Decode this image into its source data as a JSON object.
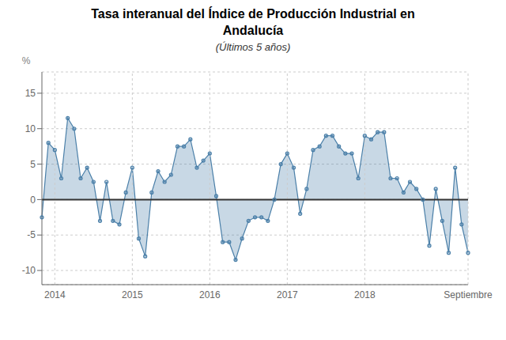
{
  "chart_data": {
    "type": "area",
    "title": "Tasa interanual del Índice de Producción Industrial en\nAndalucía",
    "subtitle": "(Últimos 5 años)",
    "y_label": "%",
    "categories": [
      null,
      null,
      "2014",
      null,
      null,
      null,
      null,
      null,
      null,
      null,
      null,
      null,
      null,
      null,
      "2015",
      null,
      null,
      null,
      null,
      null,
      null,
      null,
      null,
      null,
      null,
      null,
      "2016",
      null,
      null,
      null,
      null,
      null,
      null,
      null,
      null,
      null,
      null,
      null,
      "2017",
      null,
      null,
      null,
      null,
      null,
      null,
      null,
      null,
      null,
      null,
      null,
      "2018",
      null,
      null,
      null,
      null,
      null,
      null,
      null,
      null,
      null,
      null,
      null,
      null,
      null,
      null,
      null,
      "Septiembre"
    ],
    "values": [
      -2.5,
      8.0,
      7.0,
      3.0,
      11.5,
      10.0,
      3.0,
      4.5,
      2.5,
      -3.0,
      2.5,
      -3.0,
      -3.5,
      1.0,
      4.5,
      -5.5,
      -8.0,
      1.0,
      4.0,
      2.5,
      3.5,
      7.5,
      7.5,
      8.5,
      4.5,
      5.5,
      6.5,
      0.5,
      -6.0,
      -6.0,
      -8.5,
      -5.5,
      -3.0,
      -2.5,
      -2.5,
      -3.0,
      0.0,
      5.0,
      6.5,
      4.5,
      -2.0,
      1.5,
      7.0,
      7.5,
      9.0,
      9.0,
      7.5,
      6.5,
      6.5,
      3.0,
      9.0,
      8.5,
      9.5,
      9.5,
      3.0,
      3.0,
      1.0,
      2.5,
      1.5,
      0.0,
      -6.5,
      1.5,
      -3.0,
      -7.5,
      4.5,
      -3.5,
      -7.5
    ],
    "color": "#4a7fa8",
    "ylim": [
      -12,
      18
    ],
    "yticks": [
      -10,
      -5,
      0,
      5,
      10,
      15
    ],
    "grid": true
  }
}
